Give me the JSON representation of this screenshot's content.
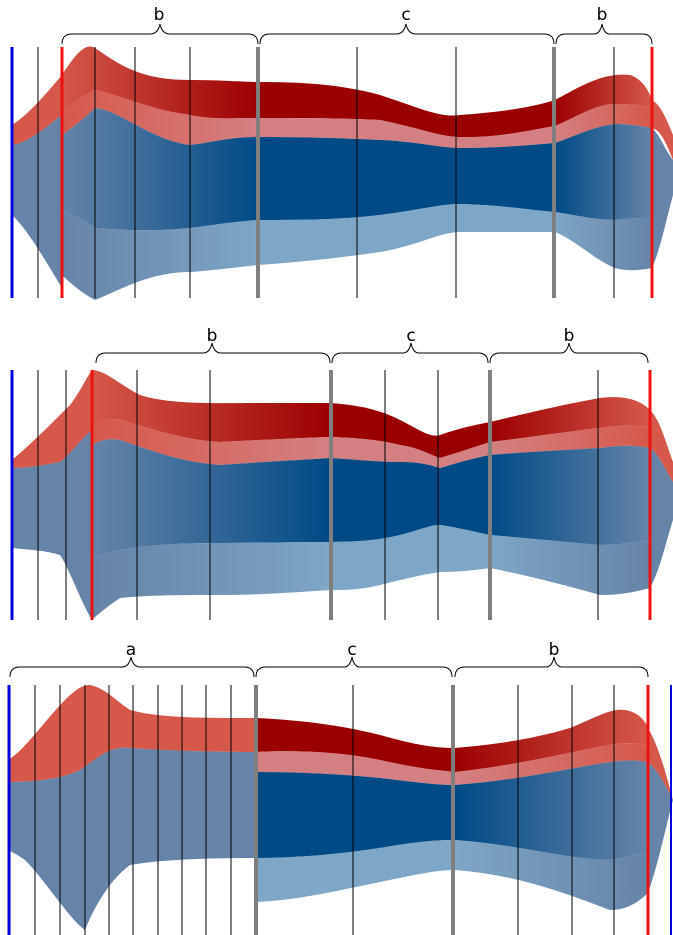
{
  "colors": {
    "band_red_dark": "#9b0000",
    "band_red": "#d6584a",
    "band_red_light": "#d48082",
    "band_blue_dark": "#004a86",
    "band_blue_mid": "#6684a8",
    "band_blue_light": "#7ea6c6",
    "line_blue": "#0000dd",
    "line_red": "#ee1111",
    "line_gray": "#7f7f7f",
    "line_black": "#000000"
  },
  "panels": [
    {
      "id": "top",
      "segments": [
        {
          "label": "b"
        },
        {
          "label": "c"
        },
        {
          "label": "b"
        }
      ]
    },
    {
      "id": "middle",
      "segments": [
        {
          "label": "b"
        },
        {
          "label": "c"
        },
        {
          "label": "b"
        }
      ]
    },
    {
      "id": "bottom",
      "segments": [
        {
          "label": "a"
        },
        {
          "label": "c"
        },
        {
          "label": "b"
        }
      ]
    }
  ]
}
